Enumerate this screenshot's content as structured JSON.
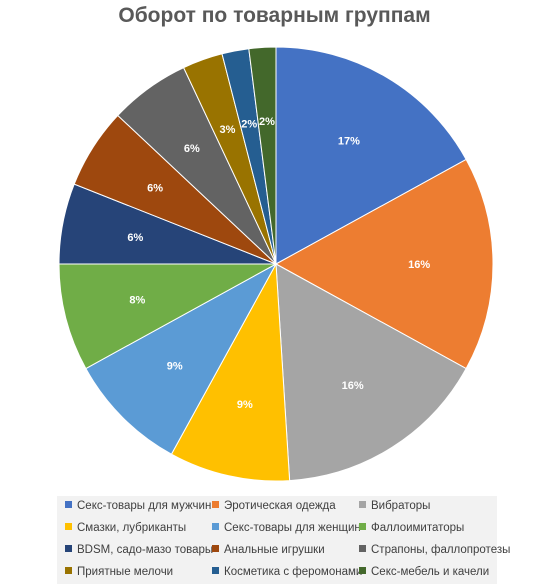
{
  "chart_data": {
    "type": "pie",
    "title": "Оборот по товарным группам",
    "legend_position": "bottom",
    "series": [
      {
        "categories": [
          "Секс-товары для мужчин",
          "Эротическая одежда",
          "Вибраторы",
          "Смазки, лубриканты",
          "Секс-товары для женщин",
          "Фаллоимитаторы",
          "BDSM, садо-мазо товары",
          "Анальные игрушки",
          "Страпоны, фаллопротезы",
          "Приятные мелочи",
          "Косметика с феромонами",
          "Секс-мебель и качели"
        ],
        "values": [
          17,
          16,
          16,
          9,
          9,
          8,
          6,
          6,
          6,
          3,
          2,
          2
        ],
        "data_labels": [
          "17%",
          "16%",
          "16%",
          "9%",
          "9%",
          "8%",
          "6%",
          "6%",
          "6%",
          "3%",
          "2%",
          "2%"
        ],
        "colors": [
          "#4472c4",
          "#ed7d31",
          "#a5a5a5",
          "#ffc000",
          "#5b9bd5",
          "#70ad47",
          "#264478",
          "#9e480e",
          "#636363",
          "#997300",
          "#255e91",
          "#43682b"
        ]
      }
    ]
  }
}
